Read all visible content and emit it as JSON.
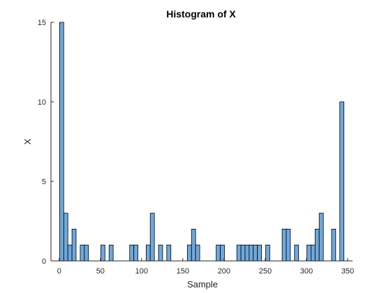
{
  "chart_data": {
    "type": "bar",
    "title": "Histogram of X",
    "xlabel": "Sample",
    "ylabel": "X",
    "xlim": [
      -10,
      356
    ],
    "ylim": [
      0,
      15
    ],
    "xticks": [
      0,
      50,
      100,
      150,
      200,
      250,
      300,
      350
    ],
    "yticks": [
      0,
      5,
      10,
      15
    ],
    "bar_color": "#6FA8DC",
    "bar_edge_color": "#000000",
    "grid": false,
    "bar_width": 5,
    "x": [
      3,
      8,
      13,
      18,
      28,
      33,
      53,
      63,
      88,
      93,
      108,
      113,
      123,
      133,
      158,
      163,
      168,
      193,
      198,
      218,
      223,
      228,
      233,
      238,
      243,
      253,
      273,
      278,
      288,
      303,
      308,
      313,
      318,
      333,
      343
    ],
    "values": [
      15,
      3,
      1,
      2,
      1,
      1,
      1,
      1,
      1,
      1,
      1,
      3,
      1,
      1,
      1,
      2,
      1,
      1,
      1,
      1,
      1,
      1,
      1,
      1,
      1,
      1,
      2,
      2,
      1,
      1,
      1,
      2,
      3,
      2,
      10
    ]
  }
}
